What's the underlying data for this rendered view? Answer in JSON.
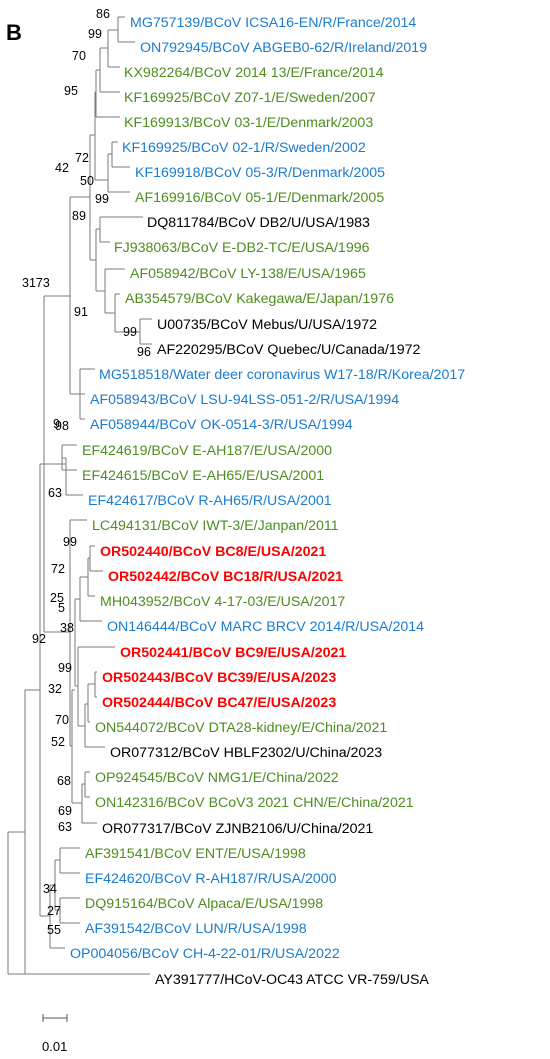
{
  "panel_label": "B",
  "colors": {
    "R": "#1b7ccf",
    "E": "#4e8d1f",
    "U": "#000000",
    "highlight": "#ff0000",
    "line": "#7a7a7a"
  },
  "taxa": [
    {
      "label": "MG757139/BCoV ICSA16-EN/R/France/2014",
      "type": "R"
    },
    {
      "label": "ON792945/BCoV ABGEB0-62/R/Ireland/2019",
      "type": "R"
    },
    {
      "label": "KX982264/BCoV 2014 13/E/France/2014",
      "type": "E"
    },
    {
      "label": "KF169925/BCoV Z07-1/E/Sweden/2007",
      "type": "E"
    },
    {
      "label": "KF169913/BCoV 03-1/E/Denmark/2003",
      "type": "E"
    },
    {
      "label": "KF169925/BCoV 02-1/R/Sweden/2002",
      "type": "R"
    },
    {
      "label": "KF169918/BCoV 05-3/R/Denmark/2005",
      "type": "R"
    },
    {
      "label": "AF169916/BCoV 05-1/E/Denmark/2005",
      "type": "E"
    },
    {
      "label": "DQ811784/BCoV DB2/U/USA/1983",
      "type": "U"
    },
    {
      "label": "FJ938063/BCoV E-DB2-TC/E/USA/1996",
      "type": "E"
    },
    {
      "label": "AF058942/BCoV LY-138/E/USA/1965",
      "type": "E"
    },
    {
      "label": "AB354579/BCoV Kakegawa/E/Japan/1976",
      "type": "E"
    },
    {
      "label": "U00735/BCoV Mebus/U/USA/1972",
      "type": "U"
    },
    {
      "label": "AF220295/BCoV Quebec/U/Canada/1972",
      "type": "U"
    },
    {
      "label": "MG518518/Water deer coronavirus W17-18/R/Korea/2017",
      "type": "R"
    },
    {
      "label": "AF058943/BCoV LSU-94LSS-051-2/R/USA/1994",
      "type": "R"
    },
    {
      "label": "AF058944/BCoV OK-0514-3/R/USA/1994",
      "type": "R"
    },
    {
      "label": "EF424619/BCoV E-AH187/E/USA/2000",
      "type": "E"
    },
    {
      "label": "EF424615/BCoV E-AH65/E/USA/2001",
      "type": "E"
    },
    {
      "label": "EF424617/BCoV R-AH65/R/USA/2001",
      "type": "R"
    },
    {
      "label": "LC494131/BCoV IWT-3/E/Janpan/2011",
      "type": "E"
    },
    {
      "label": "OR502440/BCoV BC8/E/USA/2021",
      "type": "highlight"
    },
    {
      "label": "OR502442/BCoV BC18/R/USA/2021",
      "type": "highlight"
    },
    {
      "label": "MH043952/BCoV 4-17-03/E/USA/2017",
      "type": "E"
    },
    {
      "label": "ON146444/BCoV MARC BRCV 2014/R/USA/2014",
      "type": "R"
    },
    {
      "label": "OR502441/BCoV BC9/E/USA/2021",
      "type": "highlight"
    },
    {
      "label": "OR502443/BCoV BC39/E/USA/2023",
      "type": "highlight"
    },
    {
      "label": "OR502444/BCoV BC47/E/USA/2023",
      "type": "highlight"
    },
    {
      "label": "ON544072/BCoV DTA28-kidney/E/China/2021",
      "type": "E"
    },
    {
      "label": "OR077312/BCoV HBLF2302/U/China/2023",
      "type": "U"
    },
    {
      "label": "OP924545/BCoV NMG1/E/China/2022",
      "type": "E"
    },
    {
      "label": "ON142316/BCoV BCoV3 2021 CHN/E/China/2021",
      "type": "E"
    },
    {
      "label": "OR077317/BCoV ZJNB2106/U/China/2021",
      "type": "U"
    },
    {
      "label": "AF391541/BCoV ENT/E/USA/1998",
      "type": "E"
    },
    {
      "label": "EF424620/BCoV R-AH187/R/USA/2000",
      "type": "R"
    },
    {
      "label": "DQ915164/BCoV Alpaca/E/USA/1998",
      "type": "E"
    },
    {
      "label": "AF391542/BCoV LUN/R/USA/1998",
      "type": "R"
    },
    {
      "label": "OP004056/BCoV CH-4-22-01/R/USA/2022",
      "type": "R"
    },
    {
      "label": "AY391777/HCoV-OC43 ATCC VR-759/USA",
      "type": "U"
    }
  ],
  "bootstrap": [
    "86",
    "99",
    "70",
    "95",
    "42",
    "72",
    "50",
    "99",
    "89",
    "3173",
    "91",
    "99",
    "96",
    "98",
    "9",
    "63",
    "99",
    "72",
    "25",
    "5",
    "38",
    "92",
    "99",
    "32",
    "70",
    "52",
    "68",
    "69",
    "63",
    "34",
    "27",
    "55"
  ],
  "scale_bar": {
    "label": "0.01"
  }
}
